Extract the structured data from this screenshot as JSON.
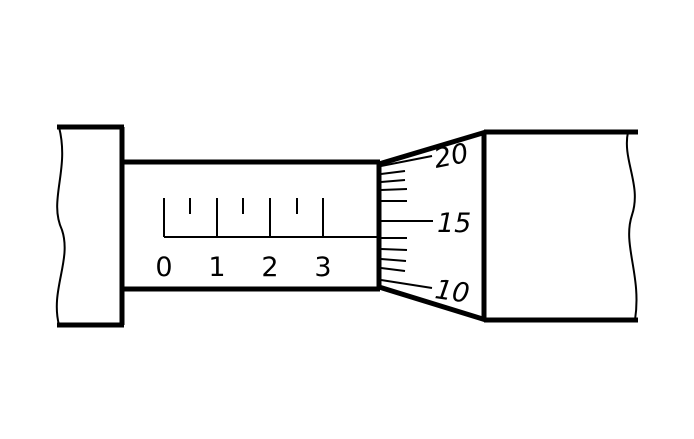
{
  "sleeve_scale": {
    "labels": [
      "0",
      "1",
      "2",
      "3"
    ]
  },
  "thimble_scale": {
    "labels": [
      "10",
      "15",
      "20"
    ]
  },
  "colors": {
    "ink": "#000000",
    "background": "#ffffff"
  }
}
